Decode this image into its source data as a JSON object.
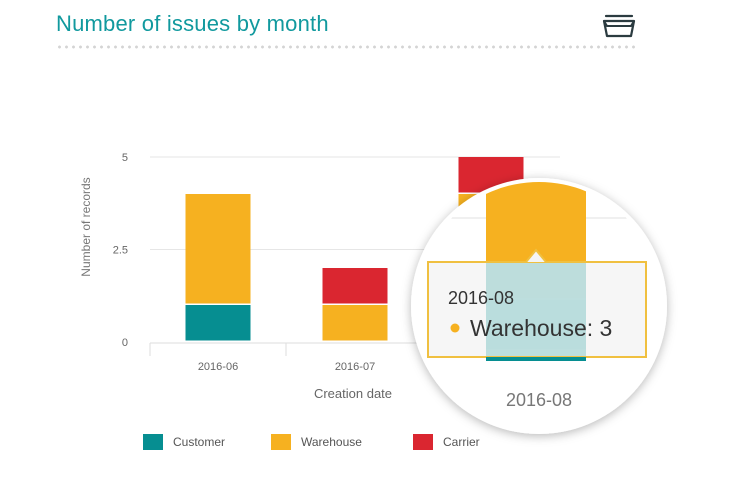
{
  "header": {
    "title": "Number of issues by month",
    "menu_icon": "tray-icon"
  },
  "colors": {
    "accent": "#11999e",
    "customer": "#068e91",
    "warehouse": "#f6b120",
    "carrier": "#da2630",
    "tooltip_border": "#f0c040",
    "tooltip_highlight": "#b3d9d9"
  },
  "chart_data": {
    "type": "bar",
    "stacked": true,
    "categories": [
      "2016-06",
      "2016-07",
      "2016-08"
    ],
    "series": [
      {
        "name": "Customer",
        "values": [
          1,
          0,
          1
        ]
      },
      {
        "name": "Warehouse",
        "values": [
          3,
          1,
          3
        ]
      },
      {
        "name": "Carrier",
        "values": [
          0,
          1,
          1
        ]
      }
    ],
    "xlabel": "Creation date",
    "ylabel": "Number of records",
    "yticks": [
      "0",
      "2.5",
      "5"
    ],
    "ylim": [
      0,
      6
    ],
    "grid": true,
    "legend_position": "bottom-left"
  },
  "tooltip": {
    "title": "2016-08",
    "series": "Warehouse",
    "separator": ": ",
    "value": "3",
    "category_label": "2016-08"
  }
}
